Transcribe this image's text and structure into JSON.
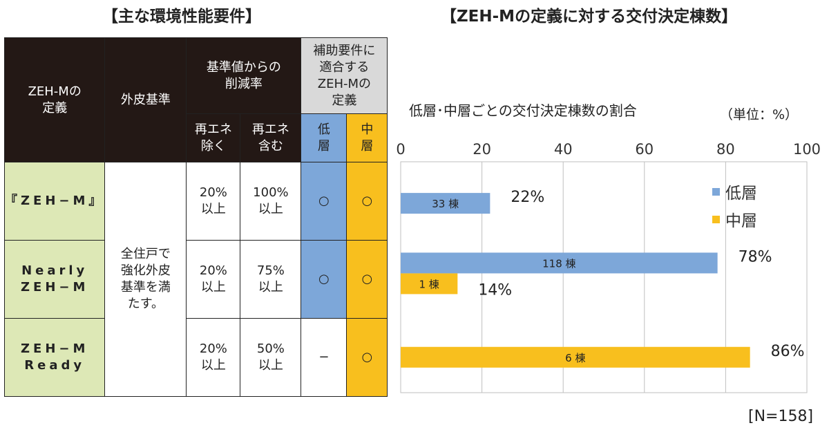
{
  "left_title": "【主な環境性能要件】",
  "right_title": "【ZEH-Mの定義に対する交付決定棟数】",
  "table": {
    "header": {
      "definition": [
        "ZEH-Mの",
        "定義"
      ],
      "envelope": "外皮基準",
      "reduction": [
        "基準値からの",
        "削減率"
      ],
      "subsidy": [
        "補助要件に",
        "適合する",
        "ZEH-Mの",
        "定義"
      ],
      "excl": [
        "再エネ",
        "除く"
      ],
      "incl": [
        "再エネ",
        "含む"
      ],
      "low": [
        "低",
        "層"
      ],
      "mid": [
        "中",
        "層"
      ]
    },
    "envelope_text": [
      "全住戸で",
      "強化外皮",
      "基準を満",
      "たす。"
    ],
    "rows": [
      {
        "label": [
          "『ZEH−M』"
        ],
        "excl": [
          "20%",
          "以上"
        ],
        "incl": [
          "100%",
          "以上"
        ],
        "low": "○",
        "mid": "○"
      },
      {
        "label": [
          "Nearly",
          "ZEH−M"
        ],
        "excl": [
          "20%",
          "以上"
        ],
        "incl": [
          "75%",
          "以上"
        ],
        "low": "○",
        "mid": "○"
      },
      {
        "label": [
          "ZEH−M",
          "Ready"
        ],
        "excl": [
          "20%",
          "以上"
        ],
        "incl": [
          "50%",
          "以上"
        ],
        "low": "−",
        "mid": "○"
      }
    ]
  },
  "chart_data": {
    "type": "bar",
    "orientation": "horizontal",
    "title": "低層･中層ごとの交付決定棟数の割合",
    "unit": "（単位：%）",
    "xlim": [
      0,
      100
    ],
    "xticks": [
      0,
      20,
      40,
      60,
      80,
      100
    ],
    "grid": true,
    "legend_position": "right",
    "colors": {
      "low": "#7da7d9",
      "mid": "#f8bf1e"
    },
    "series": [
      {
        "name": "低層",
        "color": "#7da7d9",
        "values": [
          22,
          78,
          null
        ],
        "labels": [
          "33 棟",
          "118 棟",
          null
        ],
        "pct_labels": [
          "22%",
          "78%",
          null
        ]
      },
      {
        "name": "中層",
        "color": "#f8bf1e",
        "values": [
          null,
          14,
          86
        ],
        "labels": [
          null,
          "1 棟",
          "6 棟"
        ],
        "pct_labels": [
          null,
          "14%",
          "86%"
        ]
      }
    ],
    "categories": [
      "『ZEH−M』",
      "Nearly ZEH−M",
      "ZEH−M Ready"
    ]
  },
  "n_label": "[N=158]"
}
